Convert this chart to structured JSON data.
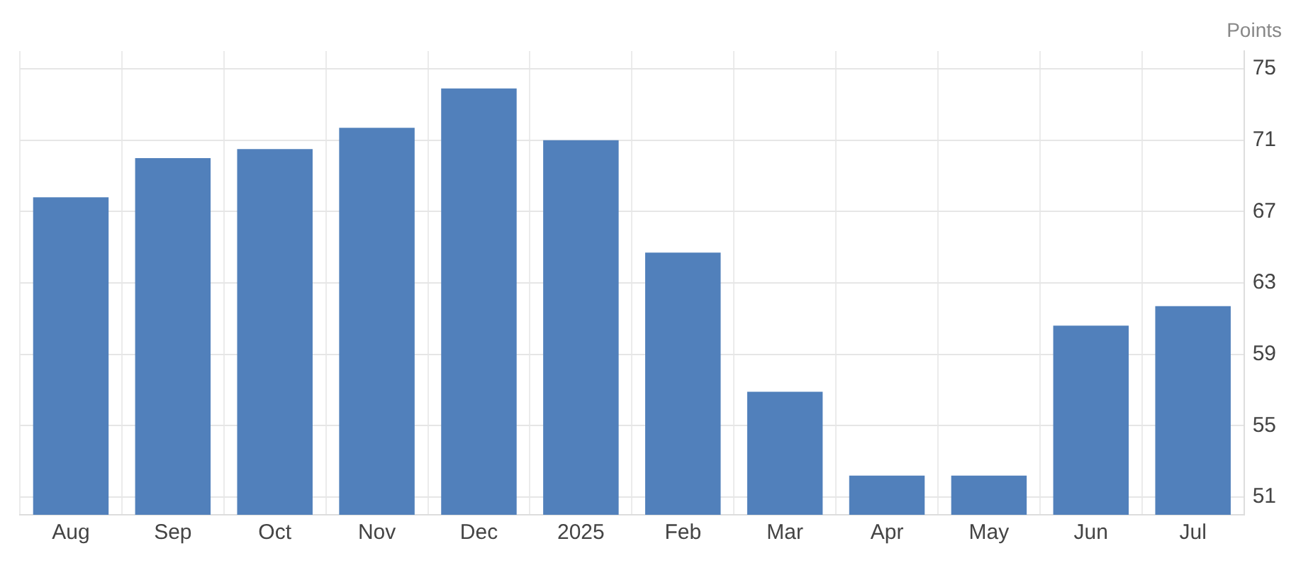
{
  "chart_data": {
    "type": "bar",
    "ylabel": "Points",
    "categories": [
      "Aug",
      "Sep",
      "Oct",
      "Nov",
      "Dec",
      "2025",
      "Feb",
      "Mar",
      "Apr",
      "May",
      "Jun",
      "Jul"
    ],
    "values": [
      67.8,
      70.0,
      70.5,
      71.7,
      73.9,
      71.0,
      64.7,
      56.9,
      52.2,
      52.2,
      60.6,
      61.7
    ],
    "color": "#5180bb",
    "ylim": [
      50,
      76
    ],
    "yticks": [
      51,
      55,
      59,
      63,
      67,
      71,
      75
    ],
    "grid": true,
    "legend": false
  }
}
